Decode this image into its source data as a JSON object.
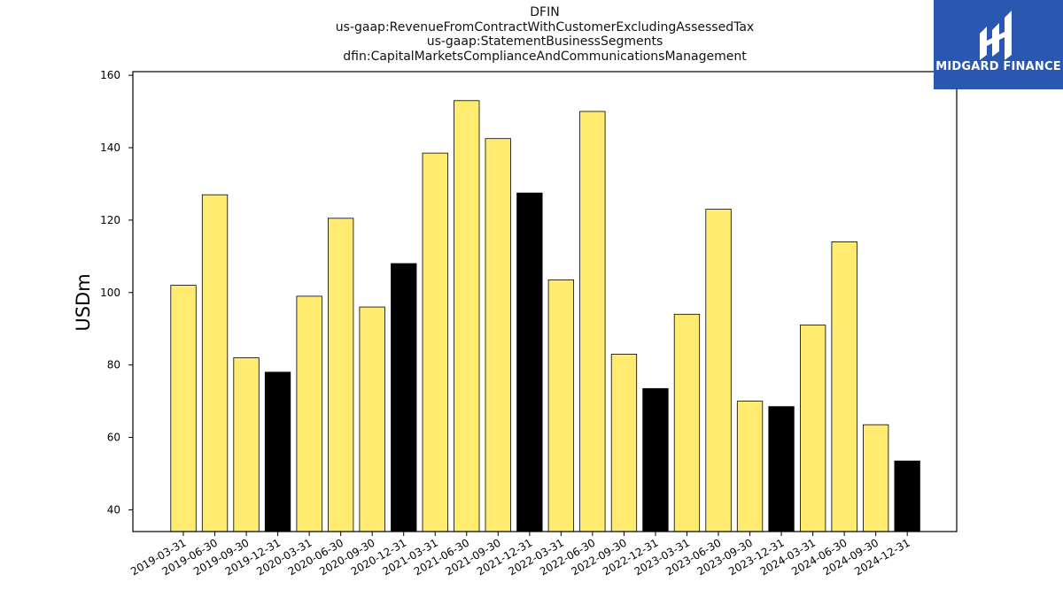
{
  "titles": {
    "line1": "DFIN",
    "line2": "us-gaap:RevenueFromContractWithCustomerExcludingAssessedTax",
    "line3": "us-gaap:StatementBusinessSegments",
    "line4": "dfin:CapitalMarketsComplianceAndCommunicationsManagement"
  },
  "logo": {
    "text": "MIDGARD FINANCE",
    "icon": "midgard-logo-icon"
  },
  "colors": {
    "quarter_bar": "#ffeb70",
    "year_end_bar": "#000000",
    "bar_edge": "#000000"
  },
  "chart_data": {
    "type": "bar",
    "title": "DFIN",
    "xlabel": "",
    "ylabel": "USDm",
    "ylim": [
      34,
      161
    ],
    "yticks": [
      40,
      60,
      80,
      100,
      120,
      140,
      160
    ],
    "grid": false,
    "categories": [
      "2019-03-31",
      "2019-06-30",
      "2019-09-30",
      "2019-12-31",
      "2020-03-31",
      "2020-06-30",
      "2020-09-30",
      "2020-12-31",
      "2021-03-31",
      "2021-06-30",
      "2021-09-30",
      "2021-12-31",
      "2022-03-31",
      "2022-06-30",
      "2022-09-30",
      "2022-12-31",
      "2023-03-31",
      "2023-06-30",
      "2023-09-30",
      "2023-12-31",
      "2024-03-31",
      "2024-06-30",
      "2024-09-30",
      "2024-12-31"
    ],
    "values": [
      102,
      127,
      82,
      78,
      99,
      120.5,
      96,
      108,
      138.5,
      153,
      142.5,
      127.5,
      103.5,
      150,
      83,
      73.5,
      94,
      123,
      70,
      68.5,
      91,
      114,
      63.5,
      53.5
    ],
    "highlight": [
      false,
      false,
      false,
      true,
      false,
      false,
      false,
      true,
      false,
      false,
      false,
      true,
      false,
      false,
      false,
      true,
      false,
      false,
      false,
      true,
      false,
      false,
      false,
      true
    ]
  }
}
